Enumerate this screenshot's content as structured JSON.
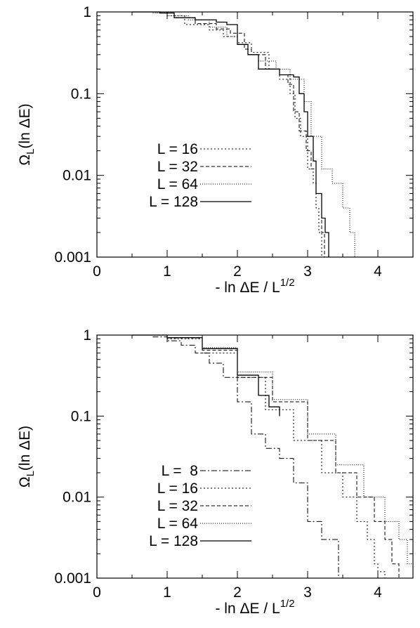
{
  "chart_data": [
    {
      "type": "line",
      "title": "",
      "xlabel": "- ln ΔE / L",
      "xlabel_exponent": "1/2",
      "ylabel": "Ω",
      "ylabel_sub": "L",
      "ylabel_rest": "(ln ΔE)",
      "xlim": [
        0,
        4.5
      ],
      "ylim": [
        0.001,
        1
      ],
      "yscale": "log",
      "xticks": [
        {
          "value": 0,
          "label": "0"
        },
        {
          "value": 1,
          "label": "1"
        },
        {
          "value": 2,
          "label": "2"
        },
        {
          "value": 3,
          "label": "3"
        },
        {
          "value": 4,
          "label": "4"
        }
      ],
      "yticks": [
        {
          "value": 1,
          "label": "1"
        },
        {
          "value": 0.1,
          "label": "0.1"
        },
        {
          "value": 0.01,
          "label": "0.01"
        },
        {
          "value": 0.001,
          "label": "0.001"
        }
      ],
      "grid": false,
      "legend_position": "left-middle",
      "series": [
        {
          "name": "L = 16",
          "dash": "2,3",
          "x": [
            0.3,
            0.9,
            1.0,
            1.25,
            1.6,
            1.8,
            2.0,
            2.2,
            2.45,
            2.6,
            2.75,
            2.82,
            2.9,
            3.0,
            3.08,
            3.12,
            3.16,
            3.2
          ],
          "y": [
            1,
            0.97,
            0.9,
            0.7,
            0.6,
            0.5,
            0.42,
            0.32,
            0.2,
            0.15,
            0.1,
            0.05,
            0.03,
            0.012,
            0.008,
            0.004,
            0.002,
            0.001
          ]
        },
        {
          "name": "L = 32",
          "dash": "5,3",
          "x": [
            0.4,
            0.9,
            1.1,
            1.4,
            1.7,
            1.9,
            2.1,
            2.2,
            2.4,
            2.6,
            2.72,
            2.8,
            2.88,
            2.98,
            3.05,
            3.12,
            3.2,
            3.24
          ],
          "y": [
            1,
            0.97,
            0.85,
            0.72,
            0.62,
            0.55,
            0.35,
            0.3,
            0.2,
            0.17,
            0.13,
            0.06,
            0.035,
            0.02,
            0.012,
            0.006,
            0.002,
            0.001
          ]
        },
        {
          "name": "L = 64",
          "dash": "1,2",
          "x": [
            0.3,
            0.8,
            1.0,
            1.3,
            1.6,
            1.85,
            2.0,
            2.15,
            2.3,
            2.55,
            2.75,
            2.95,
            3.05,
            3.2,
            3.35,
            3.5,
            3.6,
            3.67
          ],
          "y": [
            1,
            0.97,
            0.9,
            0.8,
            0.65,
            0.5,
            0.4,
            0.3,
            0.25,
            0.2,
            0.15,
            0.08,
            0.03,
            0.012,
            0.008,
            0.004,
            0.002,
            0.001
          ]
        },
        {
          "name": "L = 128",
          "dash": "",
          "x": [
            0.5,
            0.9,
            1.1,
            1.4,
            1.7,
            1.85,
            2.0,
            2.15,
            2.3,
            2.6,
            2.8,
            2.88,
            2.95,
            3.0,
            3.08,
            3.12,
            3.2,
            3.25,
            3.3
          ],
          "y": [
            1,
            0.97,
            0.85,
            0.8,
            0.75,
            0.7,
            0.4,
            0.3,
            0.2,
            0.17,
            0.16,
            0.1,
            0.06,
            0.03,
            0.015,
            0.006,
            0.003,
            0.002,
            0.001
          ]
        }
      ]
    },
    {
      "type": "line",
      "title": "",
      "xlabel": "- ln ΔE / L",
      "xlabel_exponent": "1/2",
      "ylabel": "Ω",
      "ylabel_sub": "L",
      "ylabel_rest": "(ln ΔE)",
      "xlim": [
        0,
        4.5
      ],
      "ylim": [
        0.001,
        1
      ],
      "yscale": "log",
      "xticks": [
        {
          "value": 0,
          "label": "0"
        },
        {
          "value": 1,
          "label": "1"
        },
        {
          "value": 2,
          "label": "2"
        },
        {
          "value": 3,
          "label": "3"
        },
        {
          "value": 4,
          "label": "4"
        }
      ],
      "yticks": [
        {
          "value": 1,
          "label": "1"
        },
        {
          "value": 0.1,
          "label": "0.1"
        },
        {
          "value": 0.01,
          "label": "0.01"
        },
        {
          "value": 0.001,
          "label": "0.001"
        }
      ],
      "grid": false,
      "legend_position": "left-bottom",
      "series": [
        {
          "name": "L =  8",
          "dash": "8,3,2,3",
          "x": [
            0.5,
            0.8,
            1.0,
            1.2,
            1.4,
            1.6,
            1.8,
            2.0,
            2.2,
            2.4,
            2.6,
            2.8,
            3.0,
            3.2,
            3.44,
            3.44
          ],
          "y": [
            1,
            0.95,
            0.85,
            0.75,
            0.6,
            0.45,
            0.3,
            0.15,
            0.06,
            0.04,
            0.03,
            0.015,
            0.005,
            0.003,
            0.002,
            0.001
          ]
        },
        {
          "name": "L = 16",
          "dash": "2,3",
          "x": [
            0.5,
            1.0,
            1.5,
            2.0,
            2.4,
            2.8,
            3.2,
            3.5,
            3.7,
            3.85,
            3.95,
            4.0,
            4.1
          ],
          "y": [
            1,
            0.9,
            0.6,
            0.3,
            0.12,
            0.05,
            0.02,
            0.01,
            0.005,
            0.003,
            0.0015,
            0.0012,
            0.001
          ]
        },
        {
          "name": "L = 32",
          "dash": "5,3",
          "x": [
            0.5,
            1.0,
            1.5,
            2.0,
            2.5,
            3.0,
            3.4,
            3.7,
            3.95,
            4.1,
            4.2,
            4.3
          ],
          "y": [
            1,
            0.92,
            0.65,
            0.3,
            0.15,
            0.05,
            0.02,
            0.01,
            0.005,
            0.003,
            0.0015,
            0.001
          ]
        },
        {
          "name": "L = 64",
          "dash": "1,2",
          "x": [
            0.5,
            1.0,
            1.5,
            2.0,
            2.5,
            3.0,
            3.4,
            3.8,
            4.1,
            4.3,
            4.42,
            4.5
          ],
          "y": [
            1,
            0.93,
            0.7,
            0.35,
            0.16,
            0.06,
            0.025,
            0.01,
            0.005,
            0.003,
            0.0015,
            0.001
          ]
        },
        {
          "name": "L = 128",
          "dash": "",
          "x": [
            0.5,
            1.0,
            1.5,
            2.0,
            2.3,
            2.45,
            2.6
          ],
          "y": [
            1,
            0.93,
            0.68,
            0.32,
            0.18,
            0.13,
            0.1
          ]
        }
      ]
    }
  ]
}
